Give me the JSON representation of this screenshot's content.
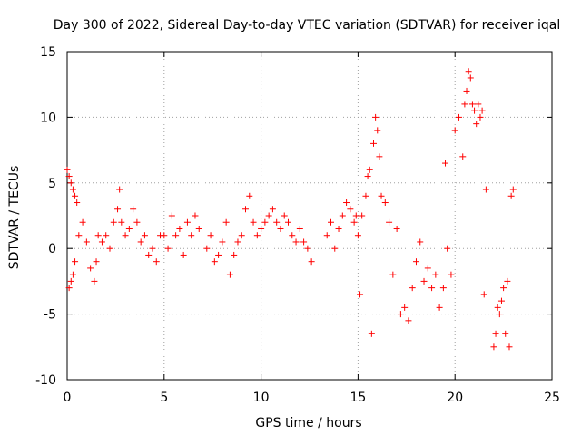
{
  "chart_data": {
    "type": "scatter",
    "title": "Day 300 of 2022, Sidereal Day-to-day VTEC variation (SDTVAR) for receiver iqal",
    "xlabel": "GPS time / hours",
    "ylabel": "SDTVAR / TECUs",
    "xlim": [
      0,
      25
    ],
    "ylim": [
      -10,
      15
    ],
    "xticks": [
      "0",
      "5",
      "10",
      "15",
      "20",
      "25"
    ],
    "yticks": [
      "-10",
      "-5",
      "0",
      "5",
      "10",
      "15"
    ],
    "grid": true,
    "marker": "plus",
    "color": "#ff0000",
    "series": [
      {
        "name": "SDTVAR",
        "x": [
          0.0,
          0.1,
          0.2,
          0.3,
          0.4,
          0.5,
          0.1,
          0.2,
          0.3,
          0.4,
          0.6,
          0.8,
          1.0,
          1.2,
          1.4,
          1.5,
          1.6,
          1.8,
          2.0,
          2.2,
          2.4,
          2.6,
          2.7,
          2.8,
          3.0,
          3.2,
          3.4,
          3.6,
          3.8,
          4.0,
          4.2,
          4.4,
          4.6,
          4.8,
          5.0,
          5.2,
          5.4,
          5.6,
          5.8,
          6.0,
          6.2,
          6.4,
          6.6,
          6.8,
          7.2,
          7.4,
          7.6,
          7.8,
          8.0,
          8.2,
          8.4,
          8.6,
          8.8,
          9.0,
          9.2,
          9.4,
          9.6,
          9.8,
          10.0,
          10.2,
          10.4,
          10.6,
          10.8,
          11.0,
          11.2,
          11.4,
          11.6,
          11.8,
          12.0,
          12.2,
          12.4,
          12.6,
          13.4,
          13.6,
          13.8,
          14.0,
          14.2,
          14.4,
          14.6,
          14.8,
          14.9,
          15.0,
          15.1,
          15.2,
          15.4,
          15.5,
          15.6,
          15.7,
          15.8,
          15.9,
          16.0,
          16.1,
          16.2,
          16.4,
          16.6,
          16.8,
          17.0,
          17.2,
          17.4,
          17.6,
          17.8,
          18.0,
          18.2,
          18.4,
          18.6,
          18.8,
          19.0,
          19.2,
          19.4,
          19.5,
          19.6,
          19.8,
          20.0,
          20.2,
          20.4,
          20.5,
          20.6,
          20.7,
          20.8,
          20.9,
          21.0,
          21.1,
          21.2,
          21.3,
          21.4,
          21.5,
          21.6,
          22.0,
          22.1,
          22.2,
          22.3,
          22.4,
          22.5,
          22.6,
          22.7,
          22.8,
          22.9,
          23.0
        ],
        "y": [
          6.0,
          5.5,
          5.0,
          4.5,
          4.0,
          3.5,
          -3.0,
          -2.5,
          -2.0,
          -1.0,
          1.0,
          2.0,
          0.5,
          -1.5,
          -2.5,
          -1.0,
          1.0,
          0.5,
          1.0,
          0.0,
          2.0,
          3.0,
          4.5,
          2.0,
          1.0,
          1.5,
          3.0,
          2.0,
          0.5,
          1.0,
          -0.5,
          0.0,
          -1.0,
          1.0,
          1.0,
          0.0,
          2.5,
          1.0,
          1.5,
          -0.5,
          2.0,
          1.0,
          2.5,
          1.5,
          0.0,
          1.0,
          -1.0,
          -0.5,
          0.5,
          2.0,
          -2.0,
          -0.5,
          0.5,
          1.0,
          3.0,
          4.0,
          2.0,
          1.0,
          1.5,
          2.0,
          2.5,
          3.0,
          2.0,
          1.5,
          2.5,
          2.0,
          1.0,
          0.5,
          1.5,
          0.5,
          0.0,
          -1.0,
          1.0,
          2.0,
          0.0,
          1.5,
          2.5,
          3.5,
          3.0,
          2.0,
          2.5,
          1.0,
          -3.5,
          2.5,
          4.0,
          5.5,
          6.0,
          -6.5,
          8.0,
          10.0,
          9.0,
          7.0,
          4.0,
          3.5,
          2.0,
          -2.0,
          1.5,
          -5.0,
          -4.5,
          -5.5,
          -3.0,
          -1.0,
          0.5,
          -2.5,
          -1.5,
          -3.0,
          -2.0,
          -4.5,
          -3.0,
          6.5,
          0.0,
          -2.0,
          9.0,
          10.0,
          7.0,
          11.0,
          12.0,
          13.5,
          13.0,
          11.0,
          10.5,
          9.5,
          11.0,
          10.0,
          10.5,
          -3.5,
          4.5,
          -7.5,
          -6.5,
          -4.5,
          -5.0,
          -4.0,
          -3.0,
          -6.5,
          -2.5,
          -7.5,
          4.0,
          4.5
        ]
      }
    ]
  }
}
